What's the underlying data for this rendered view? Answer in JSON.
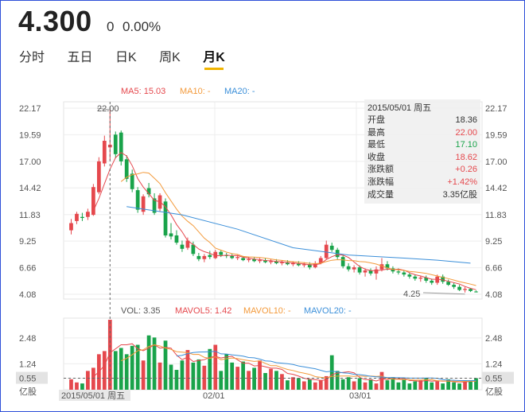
{
  "header": {
    "price": "4.300",
    "change": "0",
    "change_pct": "0.00%"
  },
  "tabs": [
    {
      "label": "分时",
      "active": false
    },
    {
      "label": "五日",
      "active": false
    },
    {
      "label": "日K",
      "active": false
    },
    {
      "label": "周K",
      "active": false
    },
    {
      "label": "月K",
      "active": true
    }
  ],
  "ma_legend": {
    "ma5": "MA5: 15.03",
    "ma10": "MA10: -",
    "ma20": "MA20: -"
  },
  "vol_legend": {
    "vol": "VOL: 3.35",
    "mavol5": "MAVOL5: 1.42",
    "mavol10": "MAVOL10: -",
    "mavol20": "MAVOL20: -"
  },
  "price_axis_labels": [
    "22.17",
    "19.59",
    "17.00",
    "14.42",
    "11.83",
    "9.25",
    "6.66",
    "4.08"
  ],
  "vol_axis_labels": [
    "2.48",
    "1.24",
    "0.55"
  ],
  "vol_unit": "亿股",
  "date_labels": {
    "cursor": "2015/05/01 周五",
    "mid1": "02/01",
    "mid2": "03/01"
  },
  "annotations": {
    "high": "22.00",
    "low": "4.25"
  },
  "tooltip": {
    "date": "2015/05/01 周五",
    "rows": [
      {
        "label": "开盘",
        "value": "18.36",
        "tone": "plain"
      },
      {
        "label": "最高",
        "value": "22.00",
        "tone": "up"
      },
      {
        "label": "最低",
        "value": "17.10",
        "tone": "down"
      },
      {
        "label": "收盘",
        "value": "18.62",
        "tone": "up"
      },
      {
        "label": "涨跌额",
        "value": "+0.26",
        "tone": "up"
      },
      {
        "label": "涨跌幅",
        "value": "+1.42%",
        "tone": "up"
      },
      {
        "label": "成交量",
        "value": "3.35亿股",
        "tone": "plain"
      }
    ]
  },
  "colors": {
    "up": "#e5484d",
    "down": "#19a34a",
    "ma5": "#e5484d",
    "ma10": "#f39a3b",
    "ma20": "#3b8fd9"
  },
  "chart_data": {
    "type": "candlestick",
    "price_axis": [
      4.08,
      22.17
    ],
    "volume_axis": [
      0,
      3.35
    ],
    "candles": [
      {
        "o": 10.3,
        "h": 11.4,
        "l": 9.9,
        "c": 11.0
      },
      {
        "o": 11.2,
        "h": 12.1,
        "l": 10.9,
        "c": 11.9
      },
      {
        "o": 11.6,
        "h": 12.0,
        "l": 11.2,
        "c": 11.5
      },
      {
        "o": 11.6,
        "h": 12.4,
        "l": 11.3,
        "c": 12.1
      },
      {
        "o": 11.8,
        "h": 14.8,
        "l": 11.7,
        "c": 14.5
      },
      {
        "o": 14.0,
        "h": 17.4,
        "l": 13.8,
        "c": 17.0
      },
      {
        "o": 16.8,
        "h": 19.5,
        "l": 16.5,
        "c": 19.0
      },
      {
        "o": 18.36,
        "h": 22.0,
        "l": 17.1,
        "c": 18.62
      },
      {
        "o": 19.6,
        "h": 19.9,
        "l": 17.3,
        "c": 17.7
      },
      {
        "o": 19.8,
        "h": 20.0,
        "l": 16.6,
        "c": 17.0
      },
      {
        "o": 17.2,
        "h": 17.6,
        "l": 15.0,
        "c": 15.3
      },
      {
        "o": 15.8,
        "h": 16.2,
        "l": 14.0,
        "c": 14.3
      },
      {
        "o": 14.2,
        "h": 14.5,
        "l": 12.0,
        "c": 12.3
      },
      {
        "o": 12.1,
        "h": 13.8,
        "l": 11.8,
        "c": 13.6
      },
      {
        "o": 14.4,
        "h": 14.9,
        "l": 13.5,
        "c": 13.8
      },
      {
        "o": 13.4,
        "h": 13.9,
        "l": 11.8,
        "c": 12.0
      },
      {
        "o": 12.4,
        "h": 13.9,
        "l": 12.1,
        "c": 13.7
      },
      {
        "o": 13.1,
        "h": 13.4,
        "l": 9.6,
        "c": 9.8
      },
      {
        "o": 10.0,
        "h": 11.0,
        "l": 9.4,
        "c": 9.7
      },
      {
        "o": 9.8,
        "h": 10.3,
        "l": 8.9,
        "c": 9.1
      },
      {
        "o": 8.9,
        "h": 9.3,
        "l": 8.2,
        "c": 8.5
      },
      {
        "o": 8.6,
        "h": 9.6,
        "l": 8.4,
        "c": 9.3
      },
      {
        "o": 8.9,
        "h": 9.2,
        "l": 7.8,
        "c": 8.0
      },
      {
        "o": 7.8,
        "h": 8.1,
        "l": 7.3,
        "c": 7.5
      },
      {
        "o": 7.5,
        "h": 8.0,
        "l": 7.2,
        "c": 7.8
      },
      {
        "o": 7.9,
        "h": 8.3,
        "l": 7.5,
        "c": 7.7
      },
      {
        "o": 7.6,
        "h": 8.4,
        "l": 7.5,
        "c": 8.2
      },
      {
        "o": 8.2,
        "h": 8.4,
        "l": 7.7,
        "c": 7.9
      },
      {
        "o": 7.9,
        "h": 8.1,
        "l": 7.6,
        "c": 7.8
      },
      {
        "o": 7.8,
        "h": 8.0,
        "l": 7.5,
        "c": 7.6
      },
      {
        "o": 7.6,
        "h": 7.9,
        "l": 7.4,
        "c": 7.7
      },
      {
        "o": 7.6,
        "h": 7.8,
        "l": 7.3,
        "c": 7.4
      },
      {
        "o": 7.4,
        "h": 7.7,
        "l": 7.2,
        "c": 7.5
      },
      {
        "o": 7.5,
        "h": 7.7,
        "l": 7.2,
        "c": 7.3
      },
      {
        "o": 7.3,
        "h": 7.6,
        "l": 7.1,
        "c": 7.4
      },
      {
        "o": 7.4,
        "h": 7.6,
        "l": 7.1,
        "c": 7.2
      },
      {
        "o": 7.2,
        "h": 7.5,
        "l": 7.0,
        "c": 7.3
      },
      {
        "o": 7.3,
        "h": 7.5,
        "l": 7.0,
        "c": 7.1
      },
      {
        "o": 7.1,
        "h": 7.4,
        "l": 6.9,
        "c": 7.2
      },
      {
        "o": 7.2,
        "h": 7.4,
        "l": 6.9,
        "c": 7.0
      },
      {
        "o": 7.0,
        "h": 7.3,
        "l": 6.8,
        "c": 7.1
      },
      {
        "o": 7.1,
        "h": 7.3,
        "l": 6.8,
        "c": 6.9
      },
      {
        "o": 6.9,
        "h": 7.2,
        "l": 6.7,
        "c": 7.0
      },
      {
        "o": 7.0,
        "h": 7.2,
        "l": 6.5,
        "c": 6.7
      },
      {
        "o": 6.7,
        "h": 7.3,
        "l": 6.6,
        "c": 7.1
      },
      {
        "o": 7.1,
        "h": 7.8,
        "l": 7.0,
        "c": 7.6
      },
      {
        "o": 7.6,
        "h": 9.3,
        "l": 7.5,
        "c": 8.9
      },
      {
        "o": 8.8,
        "h": 9.1,
        "l": 8.2,
        "c": 8.4
      },
      {
        "o": 8.4,
        "h": 8.6,
        "l": 7.5,
        "c": 7.7
      },
      {
        "o": 7.7,
        "h": 7.9,
        "l": 6.6,
        "c": 6.8
      },
      {
        "o": 6.8,
        "h": 7.1,
        "l": 6.3,
        "c": 6.5
      },
      {
        "o": 6.5,
        "h": 6.9,
        "l": 6.2,
        "c": 6.7
      },
      {
        "o": 6.7,
        "h": 6.9,
        "l": 6.0,
        "c": 6.2
      },
      {
        "o": 6.2,
        "h": 6.6,
        "l": 5.8,
        "c": 6.4
      },
      {
        "o": 6.4,
        "h": 6.6,
        "l": 5.9,
        "c": 6.1
      },
      {
        "o": 6.1,
        "h": 6.8,
        "l": 5.5,
        "c": 6.5
      },
      {
        "o": 6.5,
        "h": 7.6,
        "l": 6.3,
        "c": 7.0
      },
      {
        "o": 7.0,
        "h": 7.3,
        "l": 6.4,
        "c": 6.6
      },
      {
        "o": 6.6,
        "h": 6.8,
        "l": 6.1,
        "c": 6.3
      },
      {
        "o": 6.3,
        "h": 6.6,
        "l": 6.0,
        "c": 6.2
      },
      {
        "o": 6.2,
        "h": 6.4,
        "l": 5.8,
        "c": 6.0
      },
      {
        "o": 6.0,
        "h": 6.2,
        "l": 5.6,
        "c": 5.8
      },
      {
        "o": 5.8,
        "h": 6.0,
        "l": 5.4,
        "c": 5.6
      },
      {
        "o": 5.6,
        "h": 5.9,
        "l": 5.3,
        "c": 5.7
      },
      {
        "o": 5.7,
        "h": 5.9,
        "l": 5.2,
        "c": 5.4
      },
      {
        "o": 5.4,
        "h": 5.6,
        "l": 5.0,
        "c": 5.2
      },
      {
        "o": 5.2,
        "h": 6.0,
        "l": 5.0,
        "c": 5.8
      },
      {
        "o": 5.8,
        "h": 6.0,
        "l": 5.1,
        "c": 5.3
      },
      {
        "o": 5.3,
        "h": 5.5,
        "l": 4.9,
        "c": 5.0
      },
      {
        "o": 5.0,
        "h": 5.2,
        "l": 4.6,
        "c": 4.8
      },
      {
        "o": 4.8,
        "h": 5.0,
        "l": 4.4,
        "c": 4.5
      },
      {
        "o": 4.5,
        "h": 4.8,
        "l": 4.25,
        "c": 4.6
      },
      {
        "o": 4.6,
        "h": 4.7,
        "l": 4.3,
        "c": 4.4
      },
      {
        "o": 4.35,
        "h": 4.45,
        "l": 4.25,
        "c": 4.3
      }
    ],
    "volumes": [
      0.5,
      0.35,
      0.3,
      0.9,
      1.05,
      1.7,
      1.85,
      3.35,
      1.85,
      2.0,
      1.7,
      2.1,
      2.15,
      1.4,
      2.6,
      2.5,
      1.3,
      2.35,
      1.2,
      0.95,
      1.4,
      1.9,
      1.3,
      1.45,
      1.15,
      1.95,
      2.15,
      0.9,
      1.7,
      1.3,
      1.1,
      1.35,
      0.9,
      1.05,
      1.4,
      0.8,
      1.0,
      0.9,
      0.75,
      0.45,
      0.6,
      0.55,
      0.4,
      0.5,
      0.35,
      0.45,
      0.65,
      1.65,
      0.9,
      0.5,
      0.6,
      0.4,
      0.55,
      0.35,
      0.5,
      0.3,
      0.85,
      0.45,
      0.6,
      0.35,
      0.5,
      0.3,
      0.4,
      0.45,
      0.55,
      0.35,
      0.4,
      0.3,
      0.5,
      0.35,
      0.3,
      0.4,
      0.45,
      0.55
    ],
    "ma20": [
      [
        10,
        12.6
      ],
      [
        20,
        11.8
      ],
      [
        30,
        10.4
      ],
      [
        40,
        8.6
      ],
      [
        50,
        7.9
      ],
      [
        60,
        7.6
      ],
      [
        66,
        7.4
      ],
      [
        72,
        7.1
      ]
    ]
  }
}
